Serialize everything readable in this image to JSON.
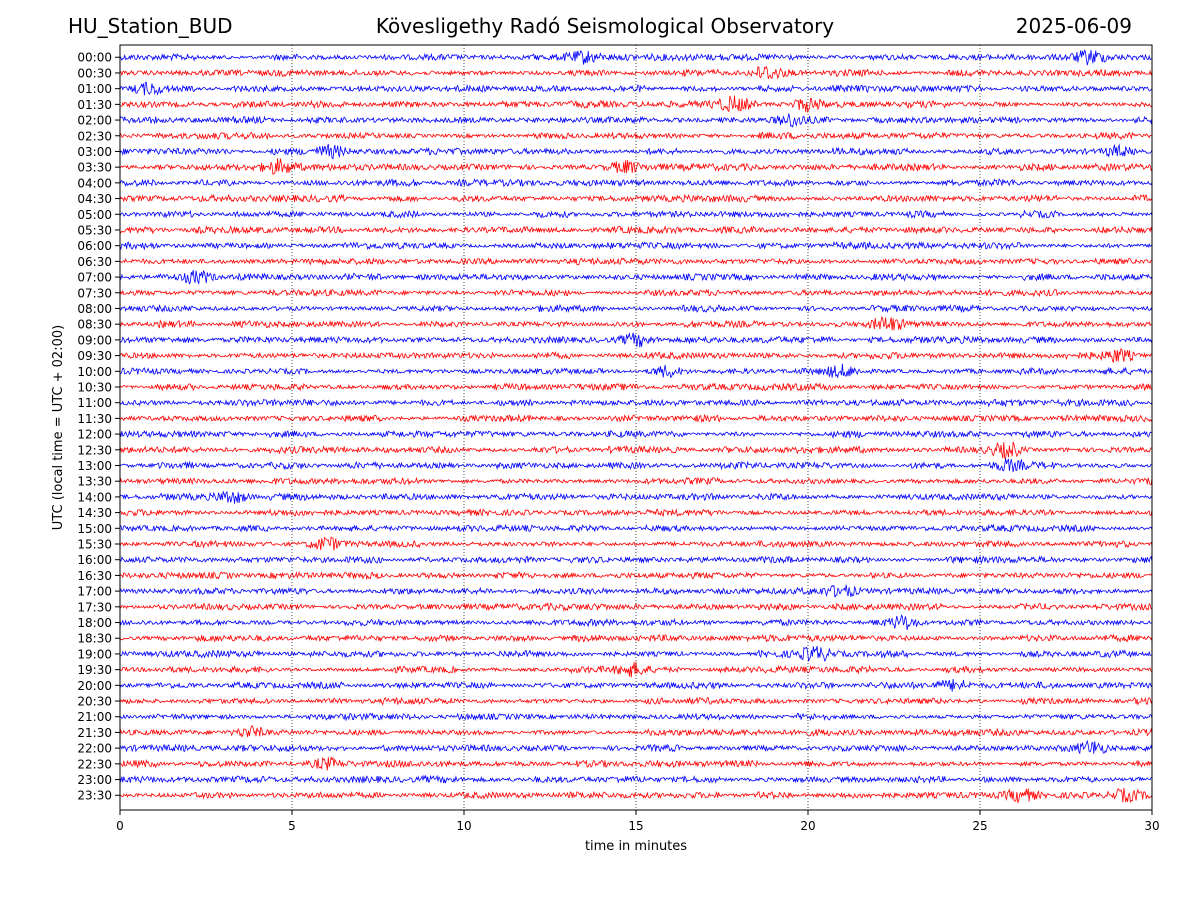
{
  "header": {
    "station": "HU_Station_BUD",
    "title": "Köveslig​ethy Radó Seismological Observatory",
    "date": "2025-06-09"
  },
  "chart_data": {
    "type": "line",
    "title": "Kövesligethy Radó Seismological Observatory",
    "xlabel": "time in minutes",
    "ylabel": "UTC (local time = UTC + 02:00)",
    "xlim": [
      0,
      30
    ],
    "xticks": [
      "0",
      "5",
      "10",
      "15",
      "20",
      "25",
      "30"
    ],
    "xgrid": true,
    "row_labels": [
      "00:00",
      "00:30",
      "01:00",
      "01:30",
      "02:00",
      "02:30",
      "03:00",
      "03:30",
      "04:00",
      "04:30",
      "05:00",
      "05:30",
      "06:00",
      "06:30",
      "07:00",
      "07:30",
      "08:00",
      "08:30",
      "09:00",
      "09:30",
      "10:00",
      "10:30",
      "11:00",
      "11:30",
      "12:00",
      "12:30",
      "13:00",
      "13:30",
      "14:00",
      "14:30",
      "15:00",
      "15:30",
      "16:00",
      "16:30",
      "17:00",
      "17:30",
      "18:00",
      "18:30",
      "19:00",
      "19:30",
      "20:00",
      "20:30",
      "21:00",
      "21:30",
      "22:00",
      "22:30",
      "23:00",
      "23:30"
    ],
    "colors": [
      "#0000ff",
      "#ff0000"
    ],
    "events": [
      {
        "row": "00:00",
        "minute": 13.5
      },
      {
        "row": "00:00",
        "minute": 28.2
      },
      {
        "row": "00:30",
        "minute": 18.8
      },
      {
        "row": "01:00",
        "minute": 0.8
      },
      {
        "row": "01:30",
        "minute": 17.8
      },
      {
        "row": "01:30",
        "minute": 20.0
      },
      {
        "row": "02:00",
        "minute": 19.5
      },
      {
        "row": "03:00",
        "minute": 6.1
      },
      {
        "row": "03:00",
        "minute": 29.0
      },
      {
        "row": "03:30",
        "minute": 4.6
      },
      {
        "row": "03:30",
        "minute": 14.7
      },
      {
        "row": "07:00",
        "minute": 2.3
      },
      {
        "row": "08:30",
        "minute": 22.3
      },
      {
        "row": "09:00",
        "minute": 15.0
      },
      {
        "row": "09:30",
        "minute": 29.0
      },
      {
        "row": "10:00",
        "minute": 21.0
      },
      {
        "row": "10:00",
        "minute": 15.9
      },
      {
        "row": "12:30",
        "minute": 25.8
      },
      {
        "row": "13:00",
        "minute": 25.8
      },
      {
        "row": "14:00",
        "minute": 3.3
      },
      {
        "row": "15:30",
        "minute": 6.0
      },
      {
        "row": "17:00",
        "minute": 21.0
      },
      {
        "row": "18:00",
        "minute": 22.8
      },
      {
        "row": "19:00",
        "minute": 20.2
      },
      {
        "row": "19:30",
        "minute": 14.9
      },
      {
        "row": "20:00",
        "minute": 24.3
      },
      {
        "row": "21:30",
        "minute": 3.8
      },
      {
        "row": "22:00",
        "minute": 28.3
      },
      {
        "row": "22:30",
        "minute": 6.0
      },
      {
        "row": "23:30",
        "minute": 29.2
      },
      {
        "row": "23:30",
        "minute": 26.2
      }
    ]
  }
}
